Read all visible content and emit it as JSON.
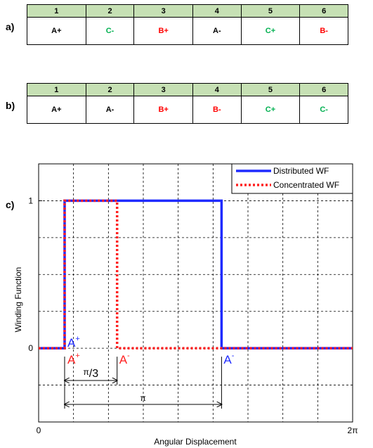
{
  "colors": {
    "header_fill": "#c6e0b4",
    "phase_a": "#000000",
    "phase_b": "#ff0000",
    "phase_c": "#00b050",
    "distributed": "#1f2bff",
    "concentrated": "#ff2020"
  },
  "tables": [
    {
      "label": "a)",
      "headers": [
        "1",
        "2",
        "3",
        "4",
        "5",
        "6"
      ],
      "cells": [
        {
          "text": "A+",
          "phase": "a"
        },
        {
          "text": "C-",
          "phase": "c"
        },
        {
          "text": "B+",
          "phase": "b"
        },
        {
          "text": "A-",
          "phase": "a"
        },
        {
          "text": "C+",
          "phase": "c"
        },
        {
          "text": "B-",
          "phase": "b"
        }
      ]
    },
    {
      "label": "b)",
      "headers": [
        "1",
        "2",
        "3",
        "4",
        "5",
        "6"
      ],
      "cells": [
        {
          "text": "A+",
          "phase": "a"
        },
        {
          "text": "A-",
          "phase": "a"
        },
        {
          "text": "B+",
          "phase": "b"
        },
        {
          "text": "B-",
          "phase": "b"
        },
        {
          "text": "C+",
          "phase": "c"
        },
        {
          "text": "C-",
          "phase": "c"
        }
      ]
    }
  ],
  "plot_label": "c)",
  "chart_data": {
    "type": "line",
    "xlabel": "Angular Displacement",
    "ylabel": "Winding Function",
    "xlim": [
      0,
      6.2832
    ],
    "ylim": [
      -0.5,
      1.25
    ],
    "xticks": [
      {
        "value": 0,
        "label": "0"
      },
      {
        "value": 6.2832,
        "label": "2π"
      }
    ],
    "yticks": [
      {
        "value": 0,
        "label": "0"
      },
      {
        "value": 1,
        "label": "1"
      }
    ],
    "grid": true,
    "legend_position": "top-right",
    "series": [
      {
        "name": "Distributed WF",
        "style": "solid",
        "color": "#1f2bff",
        "x": [
          0,
          0.52,
          0.52,
          3.66,
          3.66,
          6.2832
        ],
        "y": [
          0,
          0,
          1,
          1,
          0,
          0
        ]
      },
      {
        "name": "Concentrated WF",
        "style": "dotted",
        "color": "#ff2020",
        "x": [
          0,
          0.52,
          0.52,
          1.57,
          1.57,
          6.2832
        ],
        "y": [
          0,
          0,
          1,
          1,
          0,
          0
        ]
      }
    ],
    "annotations": [
      {
        "id": "a_plus_blue",
        "base": "A",
        "sup": "+",
        "color": "#1f2bff",
        "x": 0.52,
        "y": 0
      },
      {
        "id": "a_plus_red",
        "base": "A",
        "sup": "+",
        "color": "#ff2020",
        "x": 0.52,
        "y": 0
      },
      {
        "id": "a_minus_red",
        "base": "A",
        "sup": "-",
        "color": "#ff2020",
        "x": 1.57,
        "y": 0
      },
      {
        "id": "a_minus_blue",
        "base": "A",
        "sup": "-",
        "color": "#1f2bff",
        "x": 3.66,
        "y": 0
      }
    ],
    "spans": [
      {
        "id": "span_pi3",
        "from": 0.52,
        "to": 1.57,
        "label_num": "π",
        "label_den": "3",
        "label": "π/3"
      },
      {
        "id": "span_pi",
        "from": 0.52,
        "to": 3.66,
        "label": "π"
      }
    ]
  }
}
